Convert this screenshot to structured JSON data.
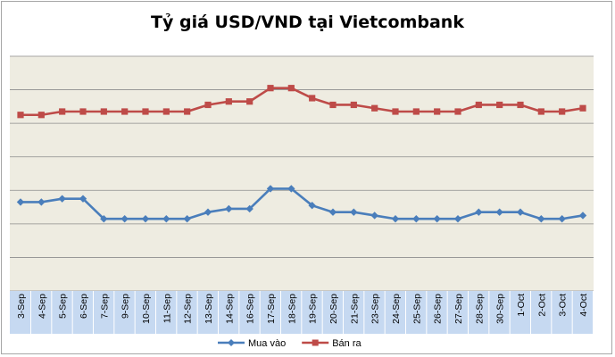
{
  "chart_data": {
    "type": "line",
    "title": "Tỷ giá USD/VND tại Vietcombank",
    "xlabel": "",
    "ylabel": "",
    "categories": [
      "3-Sep",
      "4-Sep",
      "5-Sep",
      "6-Sep",
      "7-Sep",
      "9-Sep",
      "10-Sep",
      "11-Sep",
      "12-Sep",
      "13-Sep",
      "14-Sep",
      "16-Sep",
      "17-Sep",
      "18-Sep",
      "19-Sep",
      "20-Sep",
      "21-Sep",
      "23-Sep",
      "24-Sep",
      "25-Sep",
      "26-Sep",
      "27-Sep",
      "28-Sep",
      "30-Sep",
      "1-Oct",
      "2-Oct",
      "3-Oct",
      "4-Oct"
    ],
    "ylim": [
      0,
      7
    ],
    "y_gridlines": 7,
    "y_tick_labels_shown": false,
    "grid": true,
    "legend_position": "bottom",
    "series": [
      {
        "name": "Mua vào",
        "color": "#4a7ebb",
        "marker": "diamond",
        "values": [
          2.65,
          2.65,
          2.75,
          2.75,
          2.15,
          2.15,
          2.15,
          2.15,
          2.15,
          2.35,
          2.45,
          2.45,
          3.05,
          3.05,
          2.55,
          2.35,
          2.35,
          2.25,
          2.15,
          2.15,
          2.15,
          2.15,
          2.35,
          2.35,
          2.35,
          2.15,
          2.15,
          2.25
        ]
      },
      {
        "name": "Bán ra",
        "color": "#be4b48",
        "marker": "square",
        "values": [
          5.25,
          5.25,
          5.35,
          5.35,
          5.35,
          5.35,
          5.35,
          5.35,
          5.35,
          5.55,
          5.65,
          5.65,
          6.05,
          6.05,
          5.75,
          5.55,
          5.55,
          5.45,
          5.35,
          5.35,
          5.35,
          5.35,
          5.55,
          5.55,
          5.55,
          5.35,
          5.35,
          5.45
        ]
      }
    ]
  }
}
